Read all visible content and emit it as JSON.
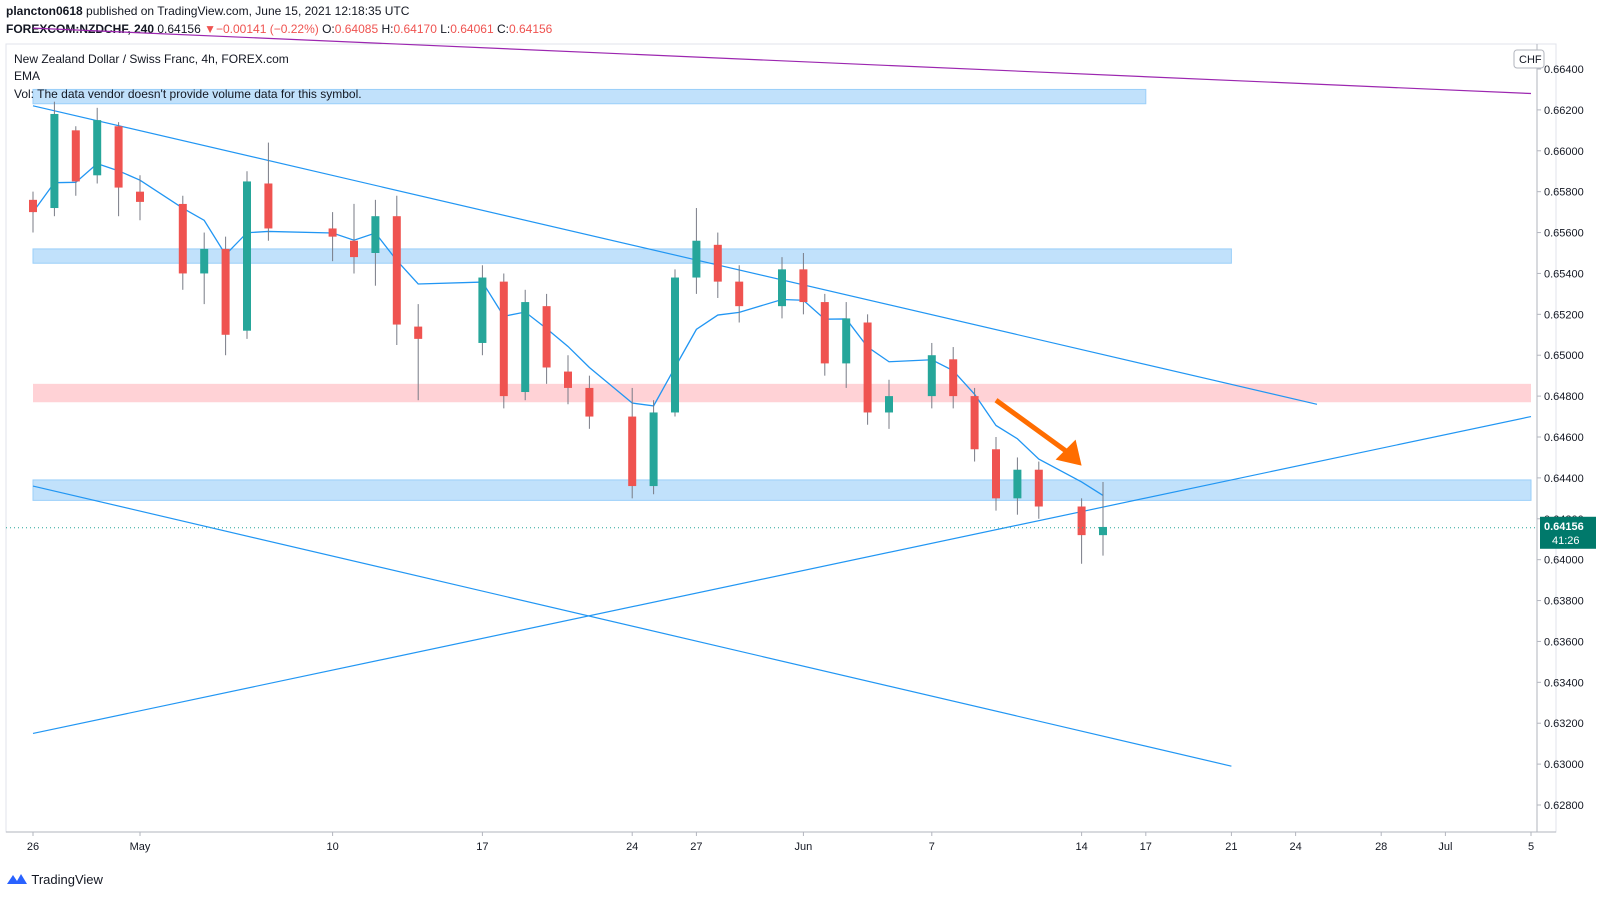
{
  "header": {
    "publisher": "plancton0618",
    "published_text": "published on TradingView.com, June 15, 2021 12:18:35 UTC",
    "symbol": "FOREXCOM:NZDCHF, 240",
    "last": "0.64156",
    "change_arrow": "▼",
    "change": "−0.00141 (−0.22%)",
    "o_label": "O:",
    "o": "0.64085",
    "h_label": "H:",
    "h": "0.64170",
    "l_label": "L:",
    "l": "0.64061",
    "c_label": "C:",
    "c": "0.64156"
  },
  "legend": {
    "title": "New Zealand Dollar / Swiss Franc, 4h, FOREX.com",
    "ema": "EMA",
    "vol": "Vol: The data vendor doesn't provide volume data for this symbol."
  },
  "footer": {
    "brand": "TradingView",
    "brand_icon": "tradingview-logo-icon"
  },
  "colors": {
    "up": "#26a69a",
    "down": "#ef5350",
    "wick": "#787b86",
    "ema": "#2196f3",
    "trend": "#2196f3",
    "purple": "#9c27b0",
    "zone_blue": "#bbdefb",
    "zone_red": "#ffcdd2",
    "arrow": "#ff6d00",
    "price_tag": "#00796b"
  },
  "chart_data": {
    "type": "candlestick",
    "currency": "CHF",
    "y_ticks": [
      "0.66400",
      "0.66200",
      "0.66000",
      "0.65800",
      "0.65600",
      "0.65400",
      "0.65200",
      "0.65000",
      "0.64800",
      "0.64600",
      "0.64400",
      "0.64200",
      "0.64000",
      "0.63800",
      "0.63600",
      "0.63400",
      "0.63200",
      "0.63000",
      "0.62800"
    ],
    "y_tick_values": [
      0.664,
      0.662,
      0.66,
      0.658,
      0.656,
      0.654,
      0.652,
      0.65,
      0.648,
      0.646,
      0.644,
      0.642,
      0.64,
      0.638,
      0.636,
      0.634,
      0.632,
      0.63,
      0.628
    ],
    "x_ticks": [
      {
        "label": "26",
        "date": "2021-04-26"
      },
      {
        "label": "May",
        "date": "2021-05-01"
      },
      {
        "label": "10",
        "date": "2021-05-10"
      },
      {
        "label": "17",
        "date": "2021-05-17"
      },
      {
        "label": "24",
        "date": "2021-05-24"
      },
      {
        "label": "27",
        "date": "2021-05-27"
      },
      {
        "label": "Jun",
        "date": "2021-06-01"
      },
      {
        "label": "7",
        "date": "2021-06-07"
      },
      {
        "label": "14",
        "date": "2021-06-14"
      },
      {
        "label": "17",
        "date": "2021-06-17"
      },
      {
        "label": "21",
        "date": "2021-06-21"
      },
      {
        "label": "24",
        "date": "2021-06-24"
      },
      {
        "label": "28",
        "date": "2021-06-28"
      },
      {
        "label": "Jul",
        "date": "2021-07-01"
      },
      {
        "label": "5",
        "date": "2021-07-05"
      }
    ],
    "last_price": "0.64156",
    "countdown": "41:26",
    "zones": [
      {
        "color": "zone_blue",
        "y_top": 0.663,
        "y_bottom": 0.6623,
        "x_start": "2021-04-26",
        "x_end": "2021-06-17"
      },
      {
        "color": "zone_blue",
        "y_top": 0.6552,
        "y_bottom": 0.6545,
        "x_start": "2021-04-26",
        "x_end": "2021-06-21"
      },
      {
        "color": "zone_red",
        "y_top": 0.6486,
        "y_bottom": 0.6477,
        "x_start": "2021-04-26",
        "x_end": "2021-07-05"
      },
      {
        "color": "zone_blue",
        "y_top": 0.6439,
        "y_bottom": 0.6429,
        "x_start": "2021-04-26",
        "x_end": "2021-07-05"
      }
    ],
    "trendlines": [
      {
        "color": "trend",
        "p1": [
          "2021-04-26",
          0.6622
        ],
        "p2": [
          "2021-06-25",
          0.6476
        ]
      },
      {
        "color": "trend",
        "p1": [
          "2021-04-26",
          0.6436
        ],
        "p2": [
          "2021-06-21",
          0.6299
        ]
      },
      {
        "color": "trend",
        "p1": [
          "2021-04-26",
          0.6315
        ],
        "p2": [
          "2021-07-05",
          0.647
        ]
      },
      {
        "color": "purple",
        "p1": [
          "2021-04-26",
          0.666
        ],
        "p2": [
          "2021-07-05",
          0.6628
        ]
      }
    ],
    "arrow": {
      "from": [
        "2021-06-10",
        0.6478
      ],
      "to": [
        "2021-06-14",
        0.6446
      ]
    },
    "candles": [
      [
        "2021-04-26",
        0.6576,
        0.658,
        0.656,
        0.657
      ],
      [
        "2021-04-27",
        0.6572,
        0.6624,
        0.6568,
        0.6618
      ],
      [
        "2021-04-28",
        0.661,
        0.6612,
        0.6578,
        0.6585
      ],
      [
        "2021-04-29",
        0.6588,
        0.6621,
        0.6584,
        0.6615
      ],
      [
        "2021-04-30",
        0.6612,
        0.6614,
        0.6568,
        0.6582
      ],
      [
        "2021-05-01",
        0.658,
        0.6588,
        0.6566,
        0.6575
      ],
      [
        "2021-05-03",
        0.6574,
        0.6578,
        0.6532,
        0.654
      ],
      [
        "2021-05-04",
        0.654,
        0.656,
        0.6525,
        0.6552
      ],
      [
        "2021-05-05",
        0.6552,
        0.6558,
        0.65,
        0.651
      ],
      [
        "2021-05-06",
        0.6512,
        0.659,
        0.6508,
        0.6585
      ],
      [
        "2021-05-07",
        0.6584,
        0.6604,
        0.6556,
        0.6562
      ],
      [
        "2021-05-10",
        0.6562,
        0.657,
        0.6546,
        0.6558
      ],
      [
        "2021-05-11",
        0.6556,
        0.6574,
        0.654,
        0.6548
      ],
      [
        "2021-05-12",
        0.655,
        0.6576,
        0.6534,
        0.6568
      ],
      [
        "2021-05-13",
        0.6568,
        0.6578,
        0.6505,
        0.6515
      ],
      [
        "2021-05-14",
        0.6514,
        0.6525,
        0.6478,
        0.6508
      ],
      [
        "2021-05-17",
        0.6506,
        0.6544,
        0.65,
        0.6538
      ],
      [
        "2021-05-18",
        0.6536,
        0.654,
        0.6474,
        0.648
      ],
      [
        "2021-05-19",
        0.6482,
        0.6532,
        0.6478,
        0.6526
      ],
      [
        "2021-05-20",
        0.6524,
        0.653,
        0.6486,
        0.6494
      ],
      [
        "2021-05-21",
        0.6492,
        0.65,
        0.6476,
        0.6484
      ],
      [
        "2021-05-22",
        0.6484,
        0.649,
        0.6464,
        0.647
      ],
      [
        "2021-05-24",
        0.647,
        0.6484,
        0.643,
        0.6436
      ],
      [
        "2021-05-25",
        0.6436,
        0.6478,
        0.6432,
        0.6472
      ],
      [
        "2021-05-26",
        0.6472,
        0.6542,
        0.647,
        0.6538
      ],
      [
        "2021-05-27",
        0.6538,
        0.6572,
        0.653,
        0.6556
      ],
      [
        "2021-05-28",
        0.6554,
        0.656,
        0.6528,
        0.6536
      ],
      [
        "2021-05-29",
        0.6536,
        0.6544,
        0.6516,
        0.6524
      ],
      [
        "2021-05-31",
        0.6524,
        0.6548,
        0.6518,
        0.6542
      ],
      [
        "2021-06-01",
        0.6542,
        0.655,
        0.652,
        0.6526
      ],
      [
        "2021-06-02",
        0.6526,
        0.653,
        0.649,
        0.6496
      ],
      [
        "2021-06-03",
        0.6496,
        0.6526,
        0.6484,
        0.6518
      ],
      [
        "2021-06-04",
        0.6516,
        0.652,
        0.6466,
        0.6472
      ],
      [
        "2021-06-05",
        0.6472,
        0.6488,
        0.6464,
        0.648
      ],
      [
        "2021-06-07",
        0.648,
        0.6506,
        0.6474,
        0.65
      ],
      [
        "2021-06-08",
        0.6498,
        0.6504,
        0.6474,
        0.648
      ],
      [
        "2021-06-09",
        0.648,
        0.6484,
        0.6448,
        0.6454
      ],
      [
        "2021-06-10",
        0.6454,
        0.646,
        0.6424,
        0.643
      ],
      [
        "2021-06-11",
        0.643,
        0.645,
        0.6422,
        0.6444
      ],
      [
        "2021-06-12",
        0.6444,
        0.6448,
        0.642,
        0.6426
      ],
      [
        "2021-06-14",
        0.6426,
        0.643,
        0.6398,
        0.6412
      ],
      [
        "2021-06-15",
        0.6412,
        0.6438,
        0.6402,
        0.6416
      ]
    ]
  }
}
